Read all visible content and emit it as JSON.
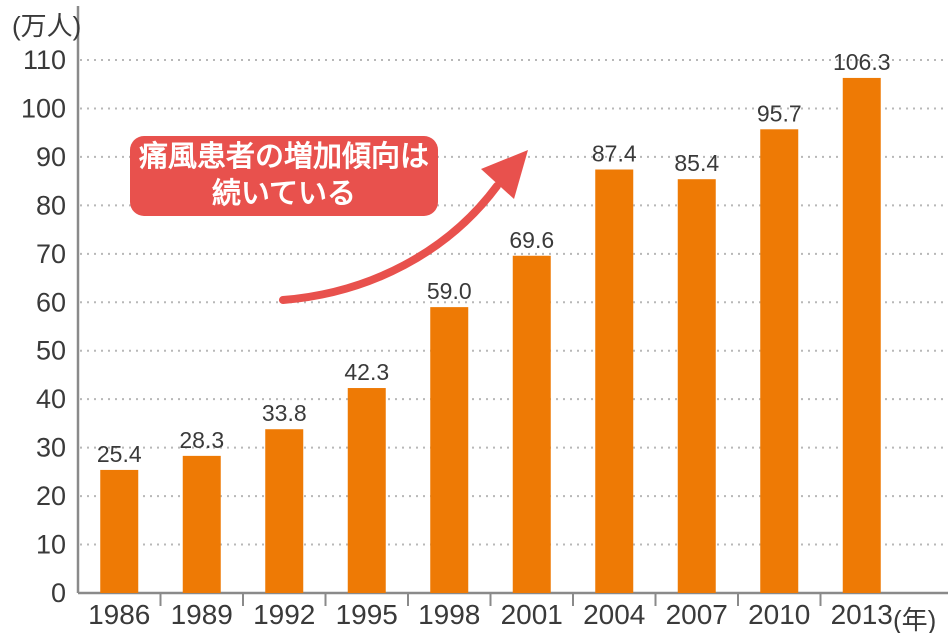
{
  "chart_data": {
    "type": "bar",
    "title": "",
    "y_unit_label": "(万人)",
    "x_unit_label": "(年)",
    "categories": [
      "1986",
      "1989",
      "1992",
      "1995",
      "1998",
      "2001",
      "2004",
      "2007",
      "2010",
      "2013"
    ],
    "values": [
      25.4,
      28.3,
      33.8,
      42.3,
      59.0,
      69.6,
      87.4,
      85.4,
      95.7,
      106.3
    ],
    "value_labels": [
      "25.4",
      "28.3",
      "33.8",
      "42.3",
      "59.0",
      "69.6",
      "87.4",
      "85.4",
      "95.7",
      "106.3"
    ],
    "ylim": [
      0,
      110
    ],
    "yticks": [
      0,
      10,
      20,
      30,
      40,
      50,
      60,
      70,
      80,
      90,
      100,
      110
    ],
    "grid": "horizontal-dotted",
    "legend": "none",
    "colors": {
      "bar": "#ee7a05",
      "accent_red": "#e8514d",
      "text": "#3a3a3a",
      "axis": "#8a8a8a",
      "grid": "#b8b8b8"
    },
    "annotation": {
      "line1": "痛風患者の増加傾向は",
      "line2": "続いている",
      "arrow": "curved-arrow-up-right"
    }
  }
}
